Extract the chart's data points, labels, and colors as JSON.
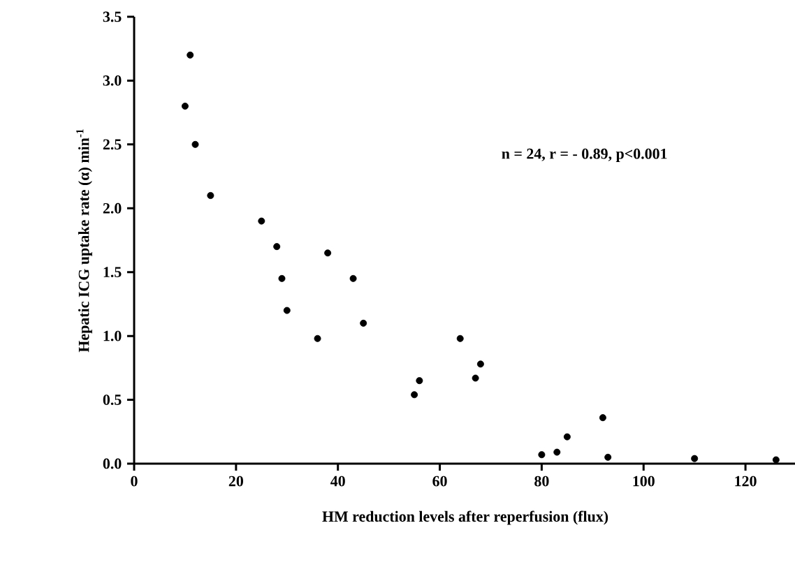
{
  "chart_data": {
    "type": "scatter",
    "xlabel": "HM reduction levels after reperfusion (flux)",
    "ylabel": "Hepatic ICG uptake rate (α) min$^{-1}$",
    "annotations": [
      {
        "text": "n = 24, r = - 0.89, p<0.001"
      }
    ],
    "x": [
      10,
      11,
      12,
      15,
      25,
      28,
      29,
      30,
      36,
      38,
      43,
      45,
      55,
      56,
      64,
      67,
      68,
      80,
      83,
      85,
      92,
      93,
      110,
      126
    ],
    "series": [
      {
        "color": "#000000",
        "values": [
          2.8,
          3.2,
          2.5,
          2.1,
          1.9,
          1.7,
          1.45,
          1.2,
          0.98,
          1.65,
          1.45,
          1.1,
          0.54,
          0.65,
          0.98,
          0.67,
          0.78,
          0.07,
          0.09,
          0.21,
          0.36,
          0.05,
          0.04,
          0.03
        ]
      }
    ],
    "xlim": [
      0,
      130
    ],
    "ylim": [
      0,
      3.5
    ],
    "xticks": [
      0,
      20,
      40,
      60,
      80,
      100,
      120
    ],
    "yticks": [
      {
        "value": 0,
        "label": "0.0"
      },
      {
        "value": 0.5,
        "label": "0.5"
      },
      {
        "value": 1,
        "label": "1.0"
      },
      {
        "value": 1.5,
        "label": "1.5"
      },
      {
        "value": 2,
        "label": "2.0"
      },
      {
        "value": 2.5,
        "label": "2.5"
      },
      {
        "value": 3,
        "label": "3.0"
      },
      {
        "value": 3.5,
        "label": "3.5"
      }
    ],
    "grid": false
  }
}
